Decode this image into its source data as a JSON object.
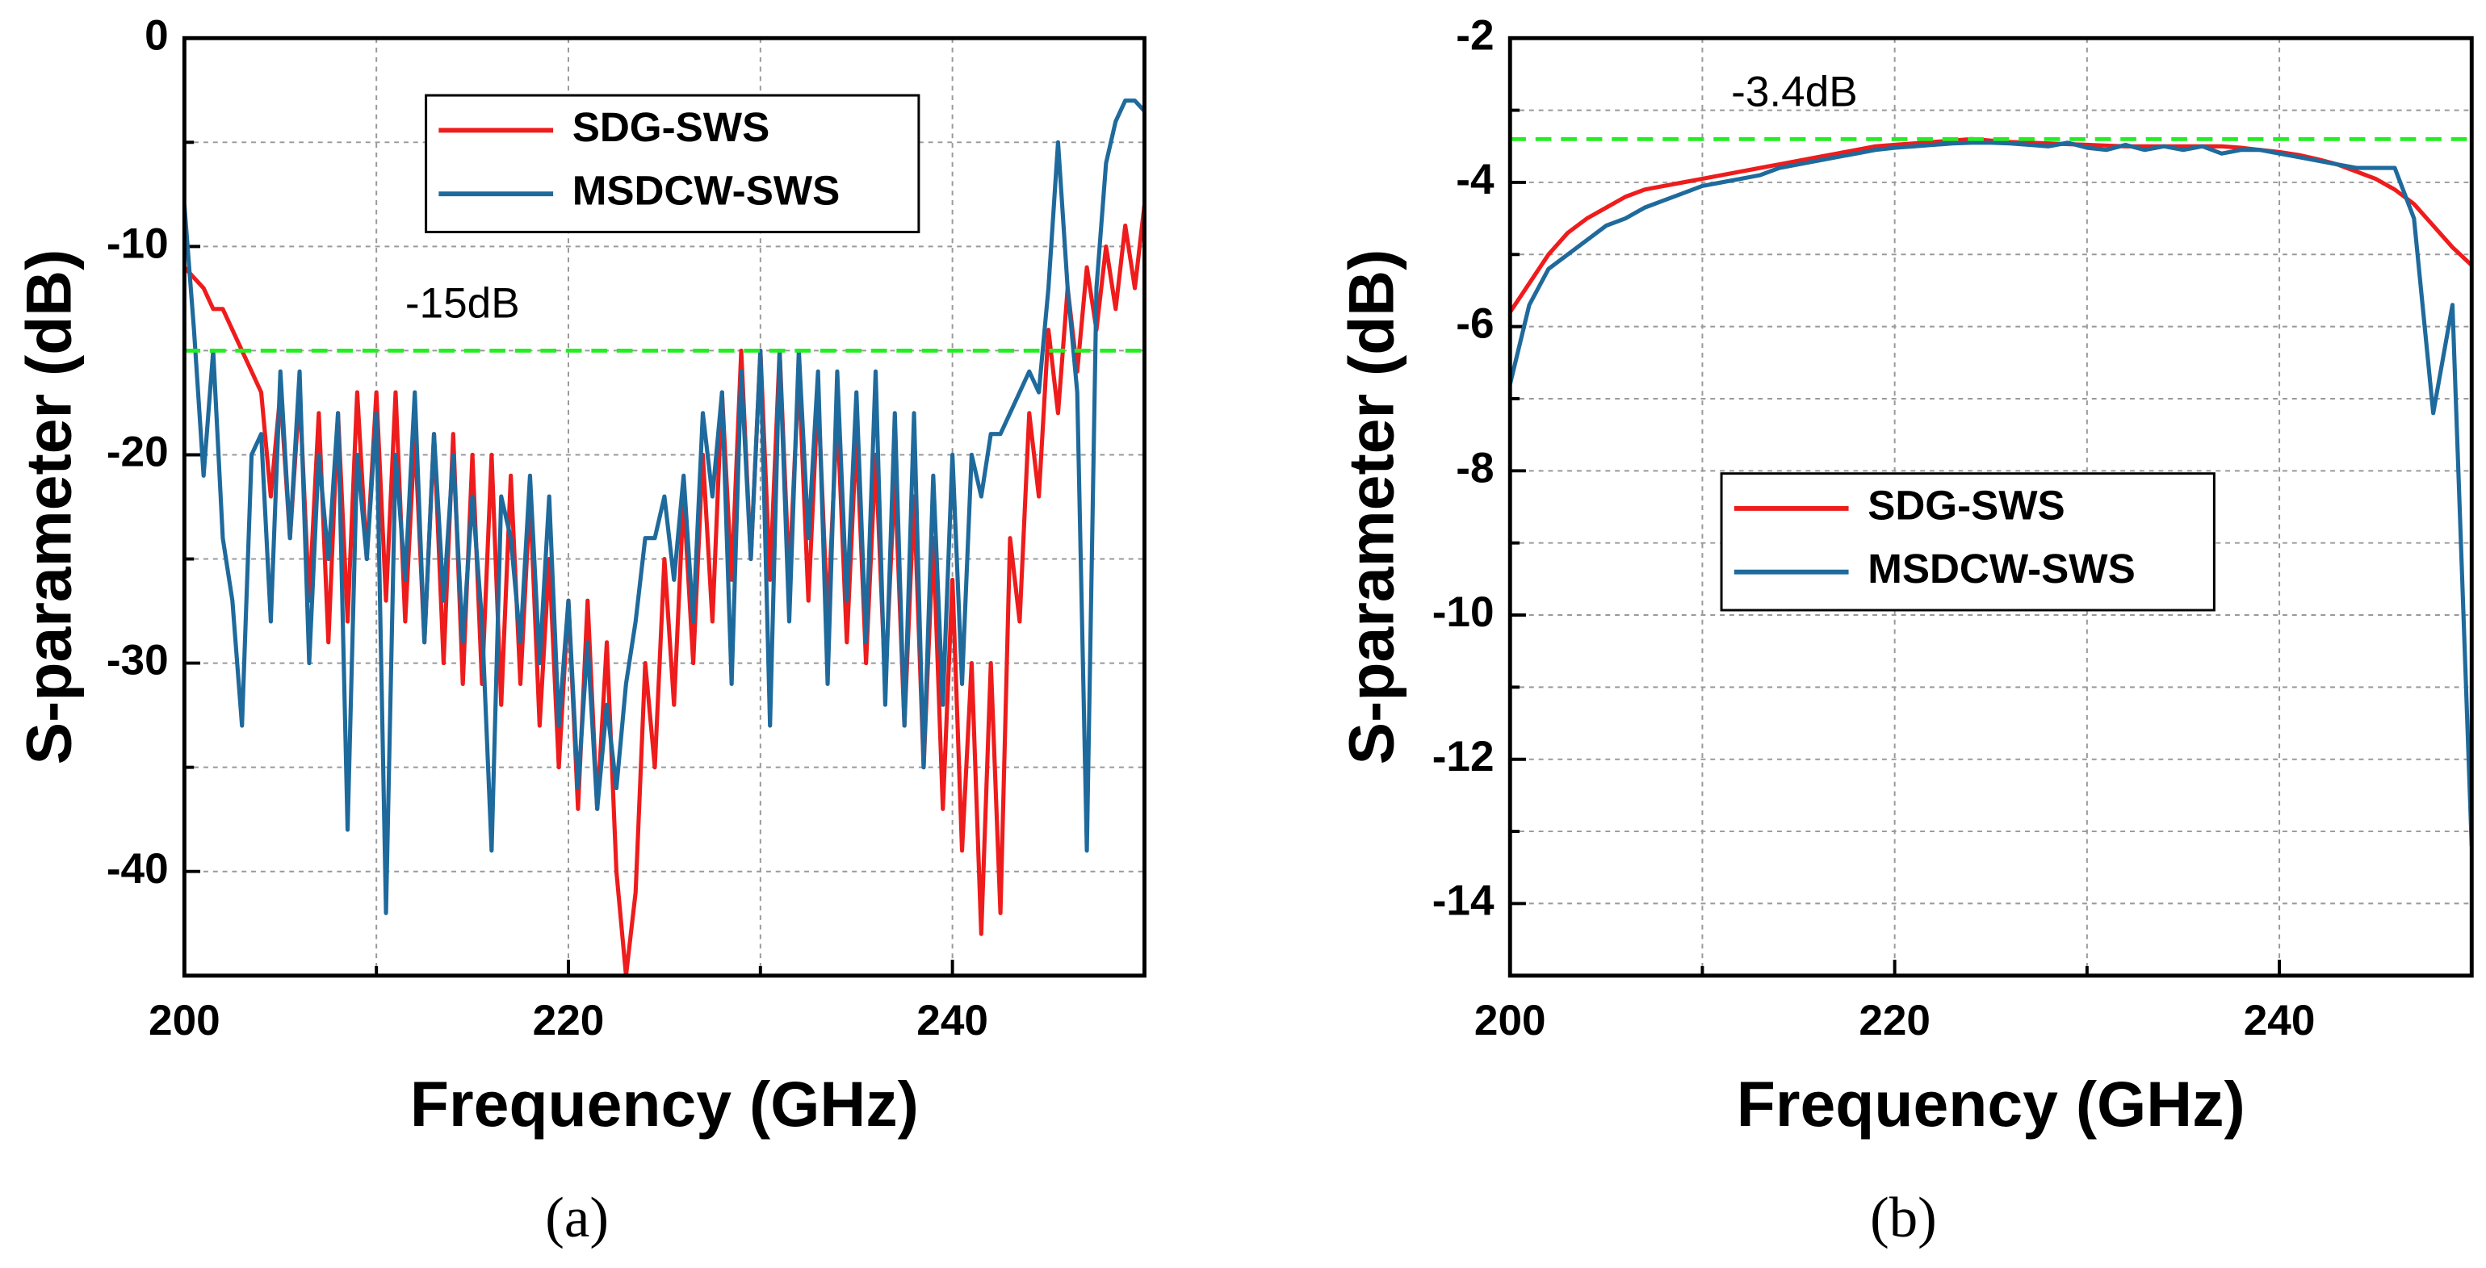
{
  "chart_data": [
    {
      "type": "line",
      "caption": "(a)",
      "xlabel": "Frequency (GHz)",
      "ylabel": "S-parameter (dB)",
      "xlim": [
        200,
        250
      ],
      "xticks": [
        200,
        220,
        240
      ],
      "xminor_ticks": [
        210,
        230,
        250
      ],
      "ylim": [
        -45,
        0
      ],
      "yticks": [
        0,
        -10,
        -20,
        -30,
        -40
      ],
      "yminor_ticks": [
        -5,
        -15,
        -25,
        -35
      ],
      "grid": true,
      "legend": "upper center",
      "hline": {
        "value": -15,
        "label": "-15dB",
        "color": "#22ee22"
      },
      "x": [
        200,
        200.5,
        201,
        201.5,
        202,
        202.5,
        203,
        203.5,
        204,
        204.5,
        205,
        205.5,
        206,
        206.5,
        207,
        207.5,
        208,
        208.5,
        209,
        209.5,
        210,
        210.5,
        211,
        211.5,
        212,
        212.5,
        213,
        213.5,
        214,
        214.5,
        215,
        215.5,
        216,
        216.5,
        217,
        217.5,
        218,
        218.5,
        219,
        219.5,
        220,
        220.5,
        221,
        221.5,
        222,
        222.5,
        223,
        223.5,
        224,
        224.5,
        225,
        225.5,
        226,
        226.5,
        227,
        227.5,
        228,
        228.5,
        229,
        229.5,
        230,
        230.5,
        231,
        231.5,
        232,
        232.5,
        233,
        233.5,
        234,
        234.5,
        235,
        235.5,
        236,
        236.5,
        237,
        237.5,
        238,
        238.5,
        239,
        239.5,
        240,
        240.5,
        241,
        241.5,
        242,
        242.5,
        243,
        243.5,
        244,
        244.5,
        245,
        245.5,
        246,
        246.5,
        247,
        247.5,
        248,
        248.5,
        249,
        249.5,
        250
      ],
      "series": [
        {
          "name": "SDG-SWS",
          "color": "#ee1c1c",
          "values": [
            -11,
            -11.5,
            -12,
            -13,
            -13,
            -14,
            -15,
            -16,
            -17,
            -22,
            -17,
            -24,
            -17,
            -27,
            -18,
            -29,
            -18,
            -28,
            -17,
            -25,
            -17,
            -27,
            -17,
            -28,
            -19,
            -29,
            -19,
            -30,
            -19,
            -31,
            -20,
            -31,
            -20,
            -32,
            -21,
            -31,
            -22,
            -33,
            -25,
            -35,
            -27,
            -37,
            -27,
            -37,
            -29,
            -40,
            -45,
            -41,
            -30,
            -35,
            -25,
            -32,
            -22,
            -30,
            -20,
            -28,
            -17,
            -26,
            -15,
            -25,
            -15,
            -26,
            -15,
            -26,
            -16,
            -27,
            -17,
            -28,
            -18,
            -29,
            -19,
            -30,
            -20,
            -31,
            -21,
            -33,
            -22,
            -35,
            -24,
            -37,
            -26,
            -39,
            -30,
            -43,
            -30,
            -42,
            -24,
            -28,
            -18,
            -22,
            -14,
            -18,
            -12,
            -16,
            -11,
            -14,
            -10,
            -13,
            -9,
            -12,
            -8
          ]
        },
        {
          "name": "MSDCW-SWS",
          "color": "#1f6a9c",
          "values": [
            -8,
            -14,
            -21,
            -15,
            -24,
            -27,
            -33,
            -20,
            -19,
            -28,
            -16,
            -24,
            -16,
            -30,
            -20,
            -25,
            -18,
            -38,
            -20,
            -25,
            -18,
            -42,
            -20,
            -26,
            -17,
            -29,
            -19,
            -27,
            -20,
            -29,
            -22,
            -28,
            -39,
            -22,
            -24,
            -29,
            -21,
            -30,
            -22,
            -33,
            -27,
            -36,
            -29,
            -37,
            -32,
            -36,
            -31,
            -28,
            -24,
            -24,
            -22,
            -26,
            -21,
            -28,
            -18,
            -22,
            -17,
            -31,
            -16,
            -25,
            -15,
            -33,
            -15,
            -28,
            -15,
            -24,
            -16,
            -31,
            -16,
            -27,
            -17,
            -29,
            -16,
            -32,
            -18,
            -33,
            -18,
            -35,
            -21,
            -32,
            -20,
            -31,
            -20,
            -22,
            -19,
            -19,
            -18,
            -17,
            -16,
            -17,
            -12,
            -5,
            -12,
            -17,
            -39,
            -12,
            -6,
            -4,
            -3,
            -3,
            -3.5
          ]
        }
      ]
    },
    {
      "type": "line",
      "caption": "(b)",
      "xlabel": "Frequency (GHz)",
      "ylabel": "S-parameter (dB)",
      "xlim": [
        200,
        250
      ],
      "xticks": [
        200,
        220,
        240
      ],
      "xminor_ticks": [
        210,
        230,
        250
      ],
      "ylim": [
        -15,
        -2
      ],
      "yticks": [
        -2,
        -4,
        -6,
        -8,
        -10,
        -12,
        -14
      ],
      "yminor_ticks": [
        -3,
        -5,
        -7,
        -9,
        -11,
        -13
      ],
      "grid": true,
      "legend": "center left",
      "hline": {
        "value": -3.4,
        "label": "-3.4dB",
        "color": "#22ee22"
      },
      "x": [
        200,
        201,
        202,
        203,
        204,
        205,
        206,
        207,
        208,
        209,
        210,
        211,
        212,
        213,
        214,
        215,
        216,
        217,
        218,
        219,
        220,
        221,
        222,
        223,
        224,
        225,
        226,
        227,
        228,
        229,
        230,
        231,
        232,
        233,
        234,
        235,
        236,
        237,
        238,
        239,
        240,
        241,
        242,
        243,
        244,
        245,
        246,
        247,
        248,
        249,
        250
      ],
      "series": [
        {
          "name": "SDG-SWS",
          "color": "#ee1c1c",
          "values": [
            -5.8,
            -5.4,
            -5.0,
            -4.7,
            -4.5,
            -4.35,
            -4.2,
            -4.1,
            -4.05,
            -4.0,
            -3.95,
            -3.9,
            -3.85,
            -3.8,
            -3.75,
            -3.7,
            -3.65,
            -3.6,
            -3.55,
            -3.5,
            -3.48,
            -3.46,
            -3.44,
            -3.42,
            -3.4,
            -3.42,
            -3.44,
            -3.45,
            -3.46,
            -3.47,
            -3.48,
            -3.49,
            -3.5,
            -3.5,
            -3.5,
            -3.5,
            -3.5,
            -3.5,
            -3.52,
            -3.55,
            -3.58,
            -3.62,
            -3.68,
            -3.75,
            -3.85,
            -3.95,
            -4.1,
            -4.3,
            -4.6,
            -4.9,
            -5.15
          ]
        },
        {
          "name": "MSDCW-SWS",
          "color": "#1f6a9c",
          "values": [
            -6.8,
            -5.7,
            -5.2,
            -5.0,
            -4.8,
            -4.6,
            -4.5,
            -4.35,
            -4.25,
            -4.15,
            -4.05,
            -4.0,
            -3.95,
            -3.9,
            -3.8,
            -3.75,
            -3.7,
            -3.65,
            -3.6,
            -3.55,
            -3.52,
            -3.5,
            -3.48,
            -3.46,
            -3.45,
            -3.45,
            -3.46,
            -3.48,
            -3.5,
            -3.45,
            -3.52,
            -3.55,
            -3.48,
            -3.55,
            -3.5,
            -3.55,
            -3.5,
            -3.6,
            -3.55,
            -3.55,
            -3.6,
            -3.65,
            -3.7,
            -3.75,
            -3.8,
            -3.8,
            -3.8,
            -4.5,
            -7.2,
            -5.7,
            -13.2
          ]
        }
      ]
    }
  ]
}
